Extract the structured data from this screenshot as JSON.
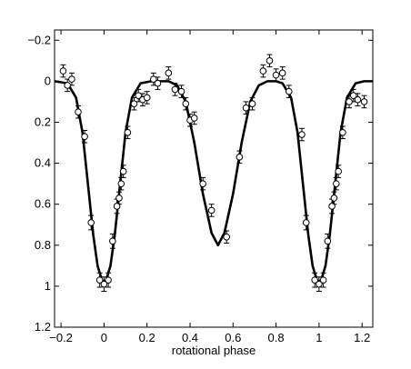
{
  "chart_data": {
    "type": "scatter",
    "title": "",
    "xlabel": "rotational phase",
    "ylabel": "",
    "xlim": [
      -0.23,
      1.25
    ],
    "ylim": [
      1.2,
      -0.25
    ],
    "y_inverted": true,
    "grid": false,
    "x_ticks": [
      -0.2,
      0,
      0.2,
      0.4,
      0.6,
      0.8,
      1,
      1.2
    ],
    "x_tick_labels": [
      "−0.2",
      "0",
      "0.2",
      "0.4",
      "0.6",
      "0.8",
      "1",
      "1.2"
    ],
    "y_ticks": [
      -0.2,
      0,
      0.2,
      0.4,
      0.6,
      0.8,
      1,
      1.2
    ],
    "y_tick_labels": [
      "−0.2",
      "0",
      "0.2",
      "0.4",
      "0.6",
      "0.8",
      "1",
      "1.2"
    ],
    "series": [
      {
        "style": "points-with-errorbars",
        "marker": "open-circle",
        "points": [
          {
            "x": -0.19,
            "y": -0.05,
            "err": 0.03
          },
          {
            "x": -0.17,
            "y": 0.02,
            "err": 0.03
          },
          {
            "x": -0.15,
            "y": -0.01,
            "err": 0.03
          },
          {
            "x": -0.12,
            "y": 0.15,
            "err": 0.03
          },
          {
            "x": -0.09,
            "y": 0.27,
            "err": 0.03
          },
          {
            "x": -0.06,
            "y": 0.69,
            "err": 0.035
          },
          {
            "x": -0.02,
            "y": 0.97,
            "err": 0.035
          },
          {
            "x": 0.0,
            "y": 0.99,
            "err": 0.035
          },
          {
            "x": 0.02,
            "y": 0.97,
            "err": 0.035
          },
          {
            "x": 0.04,
            "y": 0.78,
            "err": 0.035
          },
          {
            "x": 0.06,
            "y": 0.61,
            "err": 0.035
          },
          {
            "x": 0.07,
            "y": 0.57,
            "err": 0.03
          },
          {
            "x": 0.08,
            "y": 0.5,
            "err": 0.03
          },
          {
            "x": 0.09,
            "y": 0.44,
            "err": 0.03
          },
          {
            "x": 0.11,
            "y": 0.25,
            "err": 0.03
          },
          {
            "x": 0.14,
            "y": 0.11,
            "err": 0.03
          },
          {
            "x": 0.16,
            "y": 0.07,
            "err": 0.03
          },
          {
            "x": 0.18,
            "y": 0.09,
            "err": 0.03
          },
          {
            "x": 0.2,
            "y": 0.08,
            "err": 0.03
          },
          {
            "x": 0.23,
            "y": -0.01,
            "err": 0.03
          },
          {
            "x": 0.25,
            "y": 0.01,
            "err": 0.03
          },
          {
            "x": 0.3,
            "y": -0.04,
            "err": 0.03
          },
          {
            "x": 0.33,
            "y": 0.04,
            "err": 0.03
          },
          {
            "x": 0.36,
            "y": 0.05,
            "err": 0.03
          },
          {
            "x": 0.38,
            "y": 0.11,
            "err": 0.03
          },
          {
            "x": 0.4,
            "y": 0.19,
            "err": 0.03
          },
          {
            "x": 0.42,
            "y": 0.18,
            "err": 0.03
          },
          {
            "x": 0.46,
            "y": 0.5,
            "err": 0.03
          },
          {
            "x": 0.5,
            "y": 0.63,
            "err": 0.03
          },
          {
            "x": 0.57,
            "y": 0.76,
            "err": 0.03
          },
          {
            "x": 0.63,
            "y": 0.37,
            "err": 0.03
          },
          {
            "x": 0.66,
            "y": 0.13,
            "err": 0.03
          },
          {
            "x": 0.69,
            "y": 0.11,
            "err": 0.03
          },
          {
            "x": 0.74,
            "y": -0.05,
            "err": 0.03
          },
          {
            "x": 0.77,
            "y": -0.1,
            "err": 0.03
          },
          {
            "x": 0.8,
            "y": -0.03,
            "err": 0.03
          },
          {
            "x": 0.83,
            "y": -0.04,
            "err": 0.03
          },
          {
            "x": 0.86,
            "y": 0.05,
            "err": 0.03
          },
          {
            "x": 0.92,
            "y": 0.26,
            "err": 0.03
          },
          {
            "x": 0.94,
            "y": 0.69,
            "err": 0.035
          },
          {
            "x": 0.98,
            "y": 0.97,
            "err": 0.035
          },
          {
            "x": 1.0,
            "y": 0.99,
            "err": 0.035
          },
          {
            "x": 1.02,
            "y": 0.97,
            "err": 0.035
          },
          {
            "x": 1.04,
            "y": 0.78,
            "err": 0.035
          },
          {
            "x": 1.06,
            "y": 0.61,
            "err": 0.035
          },
          {
            "x": 1.07,
            "y": 0.57,
            "err": 0.03
          },
          {
            "x": 1.08,
            "y": 0.5,
            "err": 0.03
          },
          {
            "x": 1.09,
            "y": 0.44,
            "err": 0.03
          },
          {
            "x": 1.11,
            "y": 0.25,
            "err": 0.03
          },
          {
            "x": 1.14,
            "y": 0.1,
            "err": 0.03
          },
          {
            "x": 1.16,
            "y": 0.07,
            "err": 0.03
          },
          {
            "x": 1.18,
            "y": 0.09,
            "err": 0.03
          },
          {
            "x": 1.21,
            "y": 0.1,
            "err": 0.03
          }
        ]
      },
      {
        "style": "line",
        "color": "#000000",
        "points": [
          [
            -0.23,
            0.0
          ],
          [
            -0.17,
            0.01
          ],
          [
            -0.13,
            0.08
          ],
          [
            -0.1,
            0.25
          ],
          [
            -0.07,
            0.55
          ],
          [
            -0.05,
            0.75
          ],
          [
            -0.03,
            0.9
          ],
          [
            -0.01,
            0.97
          ],
          [
            0.0,
            0.98
          ],
          [
            0.01,
            0.97
          ],
          [
            0.03,
            0.9
          ],
          [
            0.05,
            0.75
          ],
          [
            0.07,
            0.55
          ],
          [
            0.1,
            0.25
          ],
          [
            0.13,
            0.08
          ],
          [
            0.17,
            0.01
          ],
          [
            0.22,
            0.0
          ],
          [
            0.3,
            0.0
          ],
          [
            0.34,
            0.02
          ],
          [
            0.38,
            0.1
          ],
          [
            0.42,
            0.3
          ],
          [
            0.46,
            0.55
          ],
          [
            0.5,
            0.74
          ],
          [
            0.53,
            0.8
          ],
          [
            0.56,
            0.74
          ],
          [
            0.6,
            0.55
          ],
          [
            0.64,
            0.3
          ],
          [
            0.68,
            0.1
          ],
          [
            0.72,
            0.02
          ],
          [
            0.76,
            0.0
          ],
          [
            0.8,
            0.0
          ],
          [
            0.83,
            0.01
          ],
          [
            0.87,
            0.08
          ],
          [
            0.9,
            0.25
          ],
          [
            0.93,
            0.55
          ],
          [
            0.95,
            0.75
          ],
          [
            0.97,
            0.9
          ],
          [
            0.99,
            0.97
          ],
          [
            1.0,
            0.98
          ],
          [
            1.01,
            0.97
          ],
          [
            1.03,
            0.9
          ],
          [
            1.05,
            0.75
          ],
          [
            1.07,
            0.55
          ],
          [
            1.1,
            0.25
          ],
          [
            1.13,
            0.08
          ],
          [
            1.17,
            0.01
          ],
          [
            1.21,
            0.0
          ],
          [
            1.25,
            0.0
          ]
        ]
      }
    ]
  }
}
